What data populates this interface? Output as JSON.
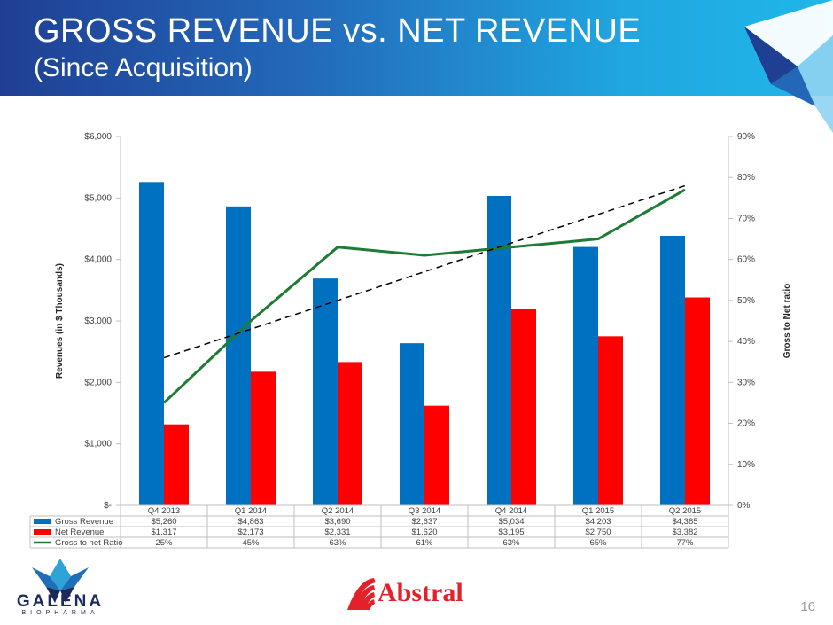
{
  "slide": {
    "title": "GROSS REVENUE vs. NET REVENUE",
    "subtitle": "(Since Acquisition)",
    "page_number": "16",
    "logo_left": {
      "name": "GALENA",
      "tagline": "BIOPHARMA"
    },
    "logo_center": {
      "name": "Abstral"
    }
  },
  "colors": {
    "gross": "#0070c0",
    "net": "#ff0000",
    "ratio": "#1e7b34",
    "trend": "#000000",
    "banner": "#2367b8"
  },
  "chart_data": {
    "type": "bar",
    "categories": [
      "Q4 2013",
      "Q1 2014",
      "Q2 2014",
      "Q3 2014",
      "Q4 2014",
      "Q1 2015",
      "Q2 2015"
    ],
    "series": [
      {
        "name": "Gross Revenue",
        "type": "bar",
        "axis": "left",
        "values": [
          5260,
          4863,
          3690,
          2637,
          5034,
          4203,
          4385
        ],
        "labels": [
          "$5,260",
          "$4,863",
          "$3,690",
          "$2,637",
          "$5,034",
          "$4,203",
          "$4,385"
        ]
      },
      {
        "name": "Net Revenue",
        "type": "bar",
        "axis": "left",
        "values": [
          1317,
          2173,
          2331,
          1620,
          3195,
          2750,
          3382
        ],
        "labels": [
          "$1,317",
          "$2,173",
          "$2,331",
          "$1,620",
          "$3,195",
          "$2,750",
          "$3,382"
        ]
      },
      {
        "name": "Gross to net Ratio",
        "type": "line",
        "axis": "right",
        "values": [
          25,
          45,
          63,
          61,
          63,
          65,
          77
        ],
        "labels": [
          "25%",
          "45%",
          "63%",
          "61%",
          "63%",
          "65%",
          "77%"
        ]
      }
    ],
    "trendline": {
      "type": "linear",
      "of": "Gross to net Ratio",
      "style": "dashed"
    },
    "y_left": {
      "label": "Revenues (in $ Thousands)",
      "range": [
        0,
        6000
      ],
      "ticks": [
        "$-",
        "$1,000",
        "$2,000",
        "$3,000",
        "$4,000",
        "$5,000",
        "$6,000"
      ]
    },
    "y_right": {
      "label": "Gross to Net ratio",
      "range": [
        0,
        90
      ],
      "ticks": [
        "0%",
        "10%",
        "20%",
        "30%",
        "40%",
        "50%",
        "60%",
        "70%",
        "80%",
        "90%"
      ]
    },
    "grid": false,
    "legend": "bottom-data-table"
  }
}
